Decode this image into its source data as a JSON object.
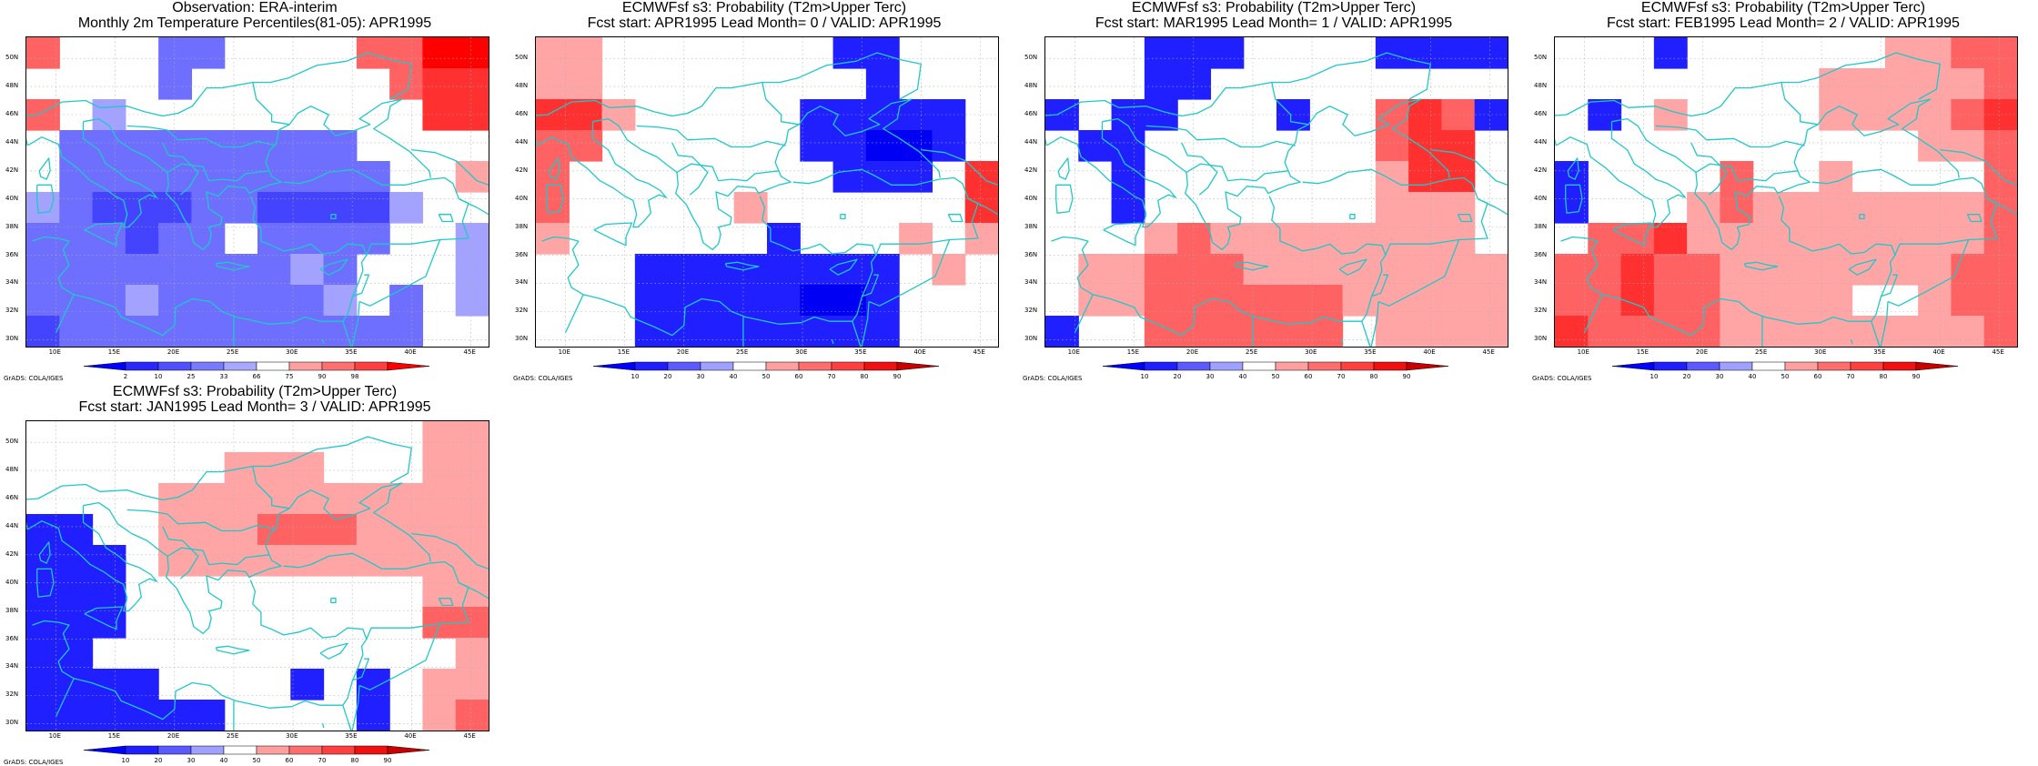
{
  "panels": [
    {
      "id": "obs",
      "title1": "Observation: ERA-interim",
      "title2": "Monthly 2m Temperature Percentiles(81-05): APR1995",
      "scale": "obs",
      "grid": [
        [
          "r2",
          ".",
          ".",
          ".",
          "b2",
          "b2",
          ".",
          ".",
          ".",
          ".",
          "r2",
          "r2",
          "r4",
          "r4"
        ],
        [
          ".",
          ".",
          ".",
          ".",
          "b2",
          ".",
          ".",
          ".",
          ".",
          ".",
          ".",
          "r2",
          "r3",
          "r3"
        ],
        [
          "r2",
          ".",
          "b1",
          ".",
          ".",
          ".",
          ".",
          ".",
          ".",
          ".",
          ".",
          ".",
          "r3",
          "r3"
        ],
        [
          ".",
          "b2",
          "b2",
          "b2",
          "b2",
          "b2",
          "b2",
          "b2",
          "b2",
          "b2",
          ".",
          ".",
          ".",
          "."
        ],
        [
          ".",
          "b2",
          "b2",
          "b2",
          "b2",
          "b2",
          "b2",
          "b2",
          "b2",
          "b2",
          "b2",
          ".",
          ".",
          "r1"
        ],
        [
          "b1",
          "b2",
          "b3",
          "b3",
          "b3",
          "b2",
          "b2",
          "b3",
          "b3",
          "b3",
          "b3",
          "b1",
          ".",
          "."
        ],
        [
          "b2",
          "b2",
          "b2",
          "b3",
          "b2",
          "b2",
          ".",
          "b2",
          "b2",
          "b2",
          "b2",
          ".",
          ".",
          "b1"
        ],
        [
          "b2",
          "b2",
          "b2",
          "b2",
          "b2",
          "b2",
          "b2",
          "b2",
          "b1",
          "b2",
          ".",
          ".",
          ".",
          "b1"
        ],
        [
          "b2",
          "b2",
          "b2",
          "b1",
          "b2",
          "b2",
          "b2",
          "b2",
          "b2",
          "b1",
          ".",
          "b2",
          ".",
          "b1"
        ],
        [
          "b3",
          "b2",
          "b2",
          "b2",
          "b2",
          "b2",
          "b2",
          "b2",
          "b2",
          "b2",
          "b2",
          "b2",
          ".",
          "."
        ]
      ]
    },
    {
      "id": "lead0",
      "title1": "ECMWFsf s3: Probability (T2m>Upper Terc)",
      "title2": "Fcst start: APR1995   Lead Month= 0 / VALID: APR1995",
      "scale": "prob",
      "grid": [
        [
          "r1",
          "r1",
          ".",
          ".",
          ".",
          ".",
          ".",
          ".",
          ".",
          "b4",
          "b4",
          ".",
          ".",
          "."
        ],
        [
          "r1",
          "r1",
          ".",
          ".",
          ".",
          ".",
          ".",
          ".",
          ".",
          ".",
          "b4",
          ".",
          ".",
          "."
        ],
        [
          "r3",
          "r3",
          "r1",
          ".",
          ".",
          ".",
          ".",
          ".",
          "b4",
          "b4",
          "b4",
          "b4",
          "b4",
          "."
        ],
        [
          "r2",
          "r2",
          ".",
          ".",
          ".",
          ".",
          ".",
          ".",
          "b4",
          "b4",
          "b5",
          "b5",
          "b4",
          "."
        ],
        [
          "r2",
          ".",
          ".",
          ".",
          ".",
          ".",
          ".",
          ".",
          ".",
          "b4",
          "b4",
          "b4",
          ".",
          "r3"
        ],
        [
          "r2",
          ".",
          ".",
          ".",
          ".",
          ".",
          "r1",
          ".",
          ".",
          ".",
          ".",
          ".",
          ".",
          "r3"
        ],
        [
          "r1",
          ".",
          ".",
          ".",
          ".",
          ".",
          ".",
          "b4",
          ".",
          ".",
          ".",
          "r1",
          ".",
          "r1"
        ],
        [
          ".",
          ".",
          ".",
          "b4",
          "b4",
          "b4",
          "b4",
          "b4",
          "b4",
          "b4",
          "b4",
          ".",
          "r1",
          "."
        ],
        [
          ".",
          ".",
          ".",
          "b4",
          "b4",
          "b4",
          "b4",
          "b4",
          "b5",
          "b5",
          "b4",
          ".",
          ".",
          "."
        ],
        [
          ".",
          ".",
          ".",
          "b4",
          "b4",
          "b4",
          "b4",
          "b4",
          "b4",
          "b4",
          "b4",
          ".",
          ".",
          "."
        ]
      ]
    },
    {
      "id": "lead1",
      "title1": "ECMWFsf s3: Probability (T2m>Upper Terc)",
      "title2": "Fcst start: MAR1995   Lead Month= 1 / VALID: APR1995",
      "scale": "prob",
      "grid": [
        [
          ".",
          ".",
          ".",
          "b4",
          "b4",
          "b4",
          ".",
          ".",
          ".",
          ".",
          "b4",
          "b4",
          "b4",
          "b4"
        ],
        [
          ".",
          ".",
          ".",
          "b4",
          "b4",
          ".",
          ".",
          ".",
          ".",
          ".",
          ".",
          ".",
          ".",
          "."
        ],
        [
          "b4",
          ".",
          "b4",
          "b4",
          ".",
          ".",
          ".",
          "b4",
          ".",
          ".",
          "r2",
          "r3",
          "r2",
          "b4"
        ],
        [
          ".",
          "b4",
          "b4",
          ".",
          ".",
          ".",
          ".",
          ".",
          ".",
          ".",
          "r2",
          "r3",
          "r3",
          "."
        ],
        [
          ".",
          ".",
          "b4",
          ".",
          ".",
          ".",
          ".",
          ".",
          ".",
          ".",
          "r1",
          "r3",
          "r3",
          "."
        ],
        [
          ".",
          ".",
          "b4",
          ".",
          ".",
          ".",
          ".",
          ".",
          ".",
          ".",
          "r1",
          "r1",
          "r1",
          "."
        ],
        [
          ".",
          ".",
          ".",
          "r1",
          "r2",
          "r1",
          "r1",
          "r1",
          "r1",
          "r1",
          "r1",
          "r1",
          "r1",
          "."
        ],
        [
          ".",
          "r1",
          "r1",
          "r2",
          "r2",
          "r2",
          "r1",
          "r1",
          "r1",
          "r1",
          "r1",
          "r1",
          "r1",
          "r1"
        ],
        [
          ".",
          "r1",
          "r1",
          "r2",
          "r2",
          "r2",
          "r2",
          "r2",
          "r2",
          "r1",
          "r1",
          "r1",
          "r1",
          "r1"
        ],
        [
          "b4",
          ".",
          ".",
          "r2",
          "r2",
          "r2",
          "r2",
          "r2",
          "r2",
          ".",
          "r1",
          "r1",
          "r1",
          "r1"
        ]
      ]
    },
    {
      "id": "lead2",
      "title1": "ECMWFsf s3: Probability (T2m>Upper Terc)",
      "title2": "Fcst start: FEB1995   Lead Month= 2 / VALID: APR1995",
      "scale": "prob",
      "grid": [
        [
          ".",
          ".",
          ".",
          "b4",
          ".",
          ".",
          ".",
          ".",
          ".",
          ".",
          "r1",
          "r1",
          "r2",
          "r2"
        ],
        [
          ".",
          ".",
          ".",
          ".",
          ".",
          ".",
          ".",
          ".",
          "r1",
          "r1",
          "r1",
          "r1",
          "r1",
          "r2"
        ],
        [
          ".",
          "b4",
          ".",
          "r1",
          ".",
          ".",
          ".",
          ".",
          "r1",
          "r1",
          "r1",
          "r1",
          "r2",
          "r3"
        ],
        [
          ".",
          ".",
          ".",
          ".",
          ".",
          ".",
          ".",
          ".",
          ".",
          ".",
          ".",
          "r1",
          "r1",
          "r2"
        ],
        [
          "b4",
          ".",
          ".",
          ".",
          ".",
          "r2",
          ".",
          ".",
          "r1",
          ".",
          ".",
          ".",
          ".",
          "r2"
        ],
        [
          "b4",
          ".",
          ".",
          ".",
          "r1",
          "r2",
          "r1",
          "r1",
          "r1",
          "r1",
          "r1",
          "r1",
          "r1",
          "r2"
        ],
        [
          ".",
          "r2",
          "r2",
          "r3",
          "r1",
          "r1",
          "r1",
          "r1",
          "r1",
          "r1",
          "r1",
          "r1",
          "r1",
          "r2"
        ],
        [
          "r2",
          "r2",
          "r3",
          "r2",
          "r2",
          "r1",
          "r1",
          "r1",
          "r1",
          "r1",
          "r1",
          "r1",
          "r2",
          "r2"
        ],
        [
          "r2",
          "r2",
          "r3",
          "r2",
          "r2",
          "r1",
          "r1",
          "r1",
          "r1",
          ".",
          ".",
          "r1",
          "r2",
          "r2"
        ],
        [
          "r3",
          "r2",
          "r2",
          "r2",
          "r2",
          "r1",
          "r1",
          "r1",
          "r1",
          "r1",
          "r1",
          "r1",
          "r1",
          "r2"
        ]
      ]
    },
    {
      "id": "lead3",
      "title1": "ECMWFsf s3: Probability (T2m>Upper Terc)",
      "title2": "Fcst start: JAN1995   Lead Month= 3 / VALID: APR1995",
      "scale": "prob",
      "grid": [
        [
          ".",
          ".",
          ".",
          ".",
          ".",
          ".",
          ".",
          ".",
          ".",
          ".",
          ".",
          ".",
          "r1",
          "r1"
        ],
        [
          ".",
          ".",
          ".",
          ".",
          ".",
          ".",
          "r1",
          "r1",
          "r1",
          ".",
          ".",
          ".",
          "r1",
          "r1"
        ],
        [
          ".",
          ".",
          ".",
          ".",
          "r1",
          "r1",
          "r1",
          "r1",
          "r1",
          "r1",
          "r1",
          "r1",
          "r1",
          "r1"
        ],
        [
          "b4",
          "b4",
          ".",
          ".",
          "r1",
          "r1",
          "r1",
          "r2",
          "r2",
          "r2",
          "r1",
          "r1",
          "r1",
          "r1"
        ],
        [
          "b4",
          "b4",
          "b4",
          ".",
          "r1",
          "r1",
          "r1",
          "r1",
          "r1",
          "r1",
          "r1",
          "r1",
          "r1",
          "r1"
        ],
        [
          "b4",
          "b4",
          "b4",
          ".",
          ".",
          ".",
          ".",
          ".",
          ".",
          ".",
          ".",
          ".",
          "r1",
          "r1"
        ],
        [
          "b4",
          "b4",
          "b4",
          ".",
          ".",
          ".",
          ".",
          ".",
          ".",
          ".",
          ".",
          ".",
          "r2",
          "r2"
        ],
        [
          "b4",
          "b4",
          ".",
          ".",
          ".",
          ".",
          ".",
          ".",
          ".",
          ".",
          ".",
          ".",
          ".",
          "r1"
        ],
        [
          "b4",
          "b4",
          "b4",
          "b4",
          ".",
          ".",
          ".",
          ".",
          "b4",
          ".",
          "b4",
          ".",
          "r1",
          "r1"
        ],
        [
          "b4",
          "b4",
          "b4",
          "b4",
          "b4",
          "b4",
          ".",
          ".",
          ".",
          ".",
          "b4",
          ".",
          "r1",
          "r2"
        ]
      ]
    }
  ],
  "map": {
    "lon_range": [
      7.5,
      46.5
    ],
    "lat_range": [
      29.5,
      51.5
    ],
    "lat_ticks": [
      "30N",
      "32N",
      "34N",
      "36N",
      "38N",
      "40N",
      "42N",
      "44N",
      "46N",
      "48N",
      "50N"
    ],
    "lon_ticks": [
      "10E",
      "15E",
      "20E",
      "25E",
      "30E",
      "35E",
      "40E",
      "45E"
    ],
    "coast_color": "#20c8c8"
  },
  "colorbars": {
    "obs": {
      "labels": [
        "2",
        "10",
        "25",
        "33",
        "66",
        "75",
        "90",
        "98"
      ],
      "colors": [
        "#0000ff",
        "#2828ff",
        "#5050ff",
        "#7a7aff",
        "#a8a8ff",
        "#ffffff",
        "#ffa0a0",
        "#ff7070",
        "#ff4040",
        "#ff0000"
      ]
    },
    "prob": {
      "labels": [
        "10",
        "20",
        "30",
        "40",
        "50",
        "60",
        "70",
        "80",
        "90"
      ],
      "colors": [
        "#0000ff",
        "#1e1eff",
        "#5a5aff",
        "#a0a0ff",
        "#ffffff",
        "#ffa0a0",
        "#ff6e6e",
        "#ff4040",
        "#f01010",
        "#c80000"
      ]
    }
  },
  "cell_colors": {
    "b1": "#a3a3ff",
    "b2": "#6e6eff",
    "b3": "#4444ff",
    "b4": "#1f1fff",
    "b5": "#0000f5",
    "r1": "#ffa5a5",
    "r2": "#ff6262",
    "r3": "#ff3030",
    "r4": "#ff0000"
  },
  "grads_label": "GrADS: COLA/IGES"
}
